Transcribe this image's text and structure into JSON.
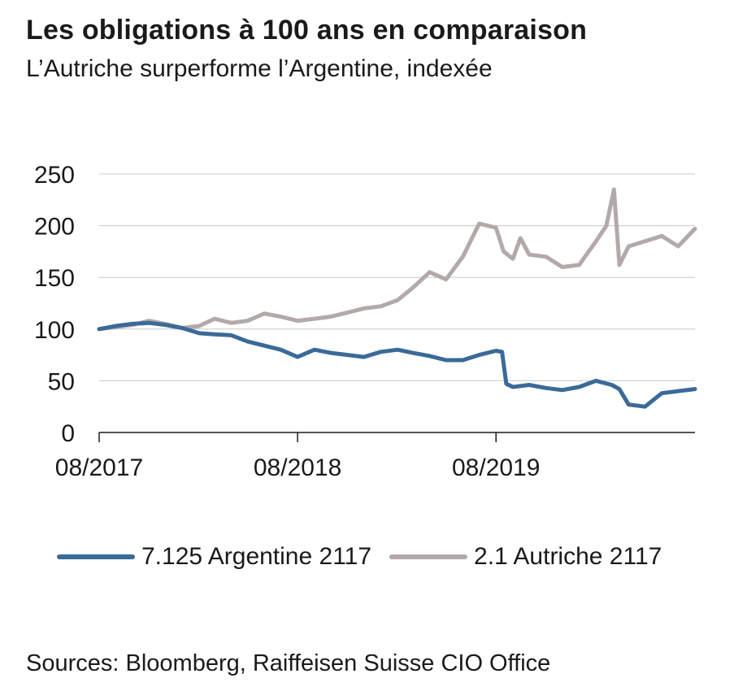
{
  "header": {
    "title": "Les obligations à 100 ans en comparaison",
    "subtitle": "L’Autriche surperforme l’Argentine, indexée"
  },
  "footer": {
    "source": "Sources: Bloomberg, Raiffeisen Suisse CIO Office"
  },
  "chart_data": {
    "type": "line",
    "title": "Les obligations à 100 ans en comparaison",
    "subtitle": "L’Autriche surperforme l’Argentine, indexée",
    "xlabel": "",
    "ylabel": "",
    "ylim": [
      0,
      250
    ],
    "xlim": [
      "2017-08",
      "2020-08"
    ],
    "yticks": [
      0,
      50,
      100,
      150,
      200,
      250
    ],
    "xticks": [
      {
        "value": "2017-08",
        "label": "08/2017"
      },
      {
        "value": "2018-08",
        "label": "08/2018"
      },
      {
        "value": "2019-08",
        "label": "08/2019"
      }
    ],
    "grid": true,
    "legend_position": "bottom",
    "series": [
      {
        "name": "7.125 Argentine 2117",
        "color": "#3a6a98",
        "x": [
          "2017-08-01",
          "2017-09-01",
          "2017-10-01",
          "2017-11-01",
          "2017-12-01",
          "2018-01-01",
          "2018-02-01",
          "2018-03-01",
          "2018-04-01",
          "2018-05-01",
          "2018-06-01",
          "2018-07-01",
          "2018-08-01",
          "2018-09-01",
          "2018-10-01",
          "2018-11-01",
          "2018-12-01",
          "2019-01-01",
          "2019-02-01",
          "2019-03-01",
          "2019-04-01",
          "2019-05-01",
          "2019-06-01",
          "2019-07-01",
          "2019-08-01",
          "2019-08-12",
          "2019-08-20",
          "2019-09-01",
          "2019-10-01",
          "2019-11-01",
          "2019-12-01",
          "2020-01-01",
          "2020-02-01",
          "2020-03-01",
          "2020-03-15",
          "2020-04-01",
          "2020-05-01",
          "2020-06-01",
          "2020-07-01",
          "2020-08-01"
        ],
        "y": [
          100,
          103,
          105,
          106,
          104,
          101,
          96,
          95,
          94,
          88,
          84,
          80,
          73,
          80,
          77,
          75,
          73,
          78,
          80,
          77,
          74,
          70,
          70,
          75,
          79,
          78,
          47,
          44,
          46,
          43,
          41,
          44,
          50,
          46,
          42,
          27,
          25,
          38,
          40,
          42
        ]
      },
      {
        "name": "2.1 Autriche 2117",
        "color": "#b3a9a9",
        "x": [
          "2017-08-01",
          "2017-09-01",
          "2017-10-01",
          "2017-11-01",
          "2017-12-01",
          "2018-01-01",
          "2018-02-01",
          "2018-03-01",
          "2018-04-01",
          "2018-05-01",
          "2018-06-01",
          "2018-07-01",
          "2018-08-01",
          "2018-09-01",
          "2018-10-01",
          "2018-11-01",
          "2018-12-01",
          "2019-01-01",
          "2019-02-01",
          "2019-03-01",
          "2019-04-01",
          "2019-05-01",
          "2019-06-01",
          "2019-07-01",
          "2019-08-01",
          "2019-08-15",
          "2019-09-01",
          "2019-09-15",
          "2019-10-01",
          "2019-11-01",
          "2019-12-01",
          "2020-01-01",
          "2020-02-01",
          "2020-02-20",
          "2020-03-05",
          "2020-03-15",
          "2020-04-01",
          "2020-05-01",
          "2020-06-01",
          "2020-07-01",
          "2020-08-01"
        ],
        "y": [
          100,
          102,
          104,
          108,
          105,
          101,
          103,
          110,
          106,
          108,
          115,
          112,
          108,
          110,
          112,
          116,
          120,
          122,
          128,
          140,
          155,
          148,
          170,
          202,
          198,
          175,
          168,
          188,
          172,
          170,
          160,
          162,
          185,
          200,
          235,
          162,
          180,
          185,
          190,
          180,
          197
        ]
      }
    ]
  }
}
